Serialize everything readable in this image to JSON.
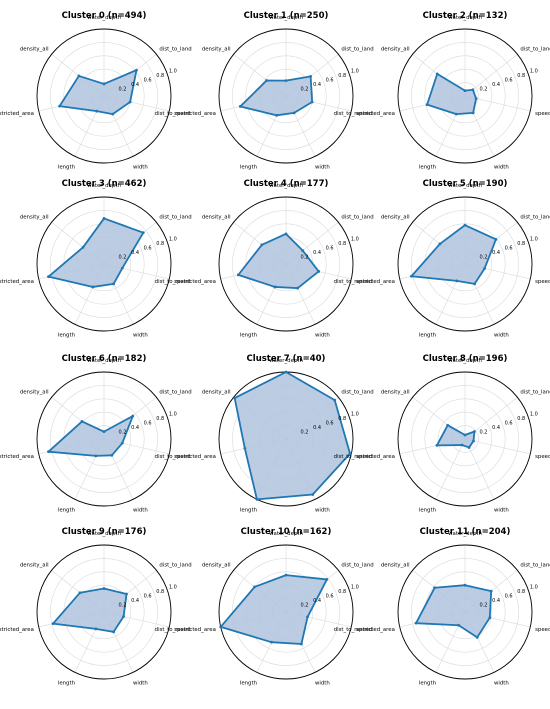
{
  "chart_data": {
    "type": "radar",
    "axes": [
      "water_depth",
      "dist_to_land",
      "speed",
      "width",
      "length",
      "dist_to_restricted_area",
      "density_all"
    ],
    "rlim": [
      0,
      1.0
    ],
    "rticks": [
      "0.2",
      "0.4",
      "0.6",
      "0.8",
      "1.0"
    ],
    "grid": true,
    "color": "#1f77b4",
    "fill_color": "#b0c4de",
    "clusters": [
      {
        "title": "Cluster 0 (n=494)",
        "values": [
          0.18,
          0.62,
          0.4,
          0.3,
          0.25,
          0.68,
          0.48
        ]
      },
      {
        "title": "Cluster 1 (n=250)",
        "values": [
          0.23,
          0.47,
          0.4,
          0.28,
          0.32,
          0.7,
          0.37
        ]
      },
      {
        "title": "Cluster 2 (n=132)",
        "values": [
          0.08,
          0.15,
          0.17,
          0.28,
          0.3,
          0.58,
          0.53
        ]
      },
      {
        "title": "Cluster 3 (n=462)",
        "values": [
          0.68,
          0.75,
          0.28,
          0.33,
          0.38,
          0.85,
          0.4
        ]
      },
      {
        "title": "Cluster 4 (n=177)",
        "values": [
          0.45,
          0.32,
          0.5,
          0.4,
          0.38,
          0.73,
          0.46
        ]
      },
      {
        "title": "Cluster 5 (n=190)",
        "values": [
          0.58,
          0.59,
          0.3,
          0.33,
          0.28,
          0.82,
          0.48
        ]
      },
      {
        "title": "Cluster 6 (n=182)",
        "values": [
          0.11,
          0.55,
          0.28,
          0.27,
          0.28,
          0.85,
          0.42
        ]
      },
      {
        "title": "Cluster 7 (n=40)",
        "values": [
          1.0,
          0.93,
          0.98,
          0.92,
          1.0,
          0.63,
          0.98
        ]
      },
      {
        "title": "Cluster 8 (n=196)",
        "values": [
          0.06,
          0.18,
          0.13,
          0.14,
          0.1,
          0.43,
          0.33
        ]
      },
      {
        "title": "Cluster 9 (n=176)",
        "values": [
          0.35,
          0.43,
          0.3,
          0.33,
          0.28,
          0.78,
          0.46
        ]
      },
      {
        "title": "Cluster 10 (n=162)",
        "values": [
          0.55,
          0.78,
          0.33,
          0.53,
          0.5,
          1.0,
          0.6
        ]
      },
      {
        "title": "Cluster 11 (n=204)",
        "values": [
          0.4,
          0.5,
          0.38,
          0.42,
          0.22,
          0.75,
          0.58
        ]
      }
    ]
  }
}
